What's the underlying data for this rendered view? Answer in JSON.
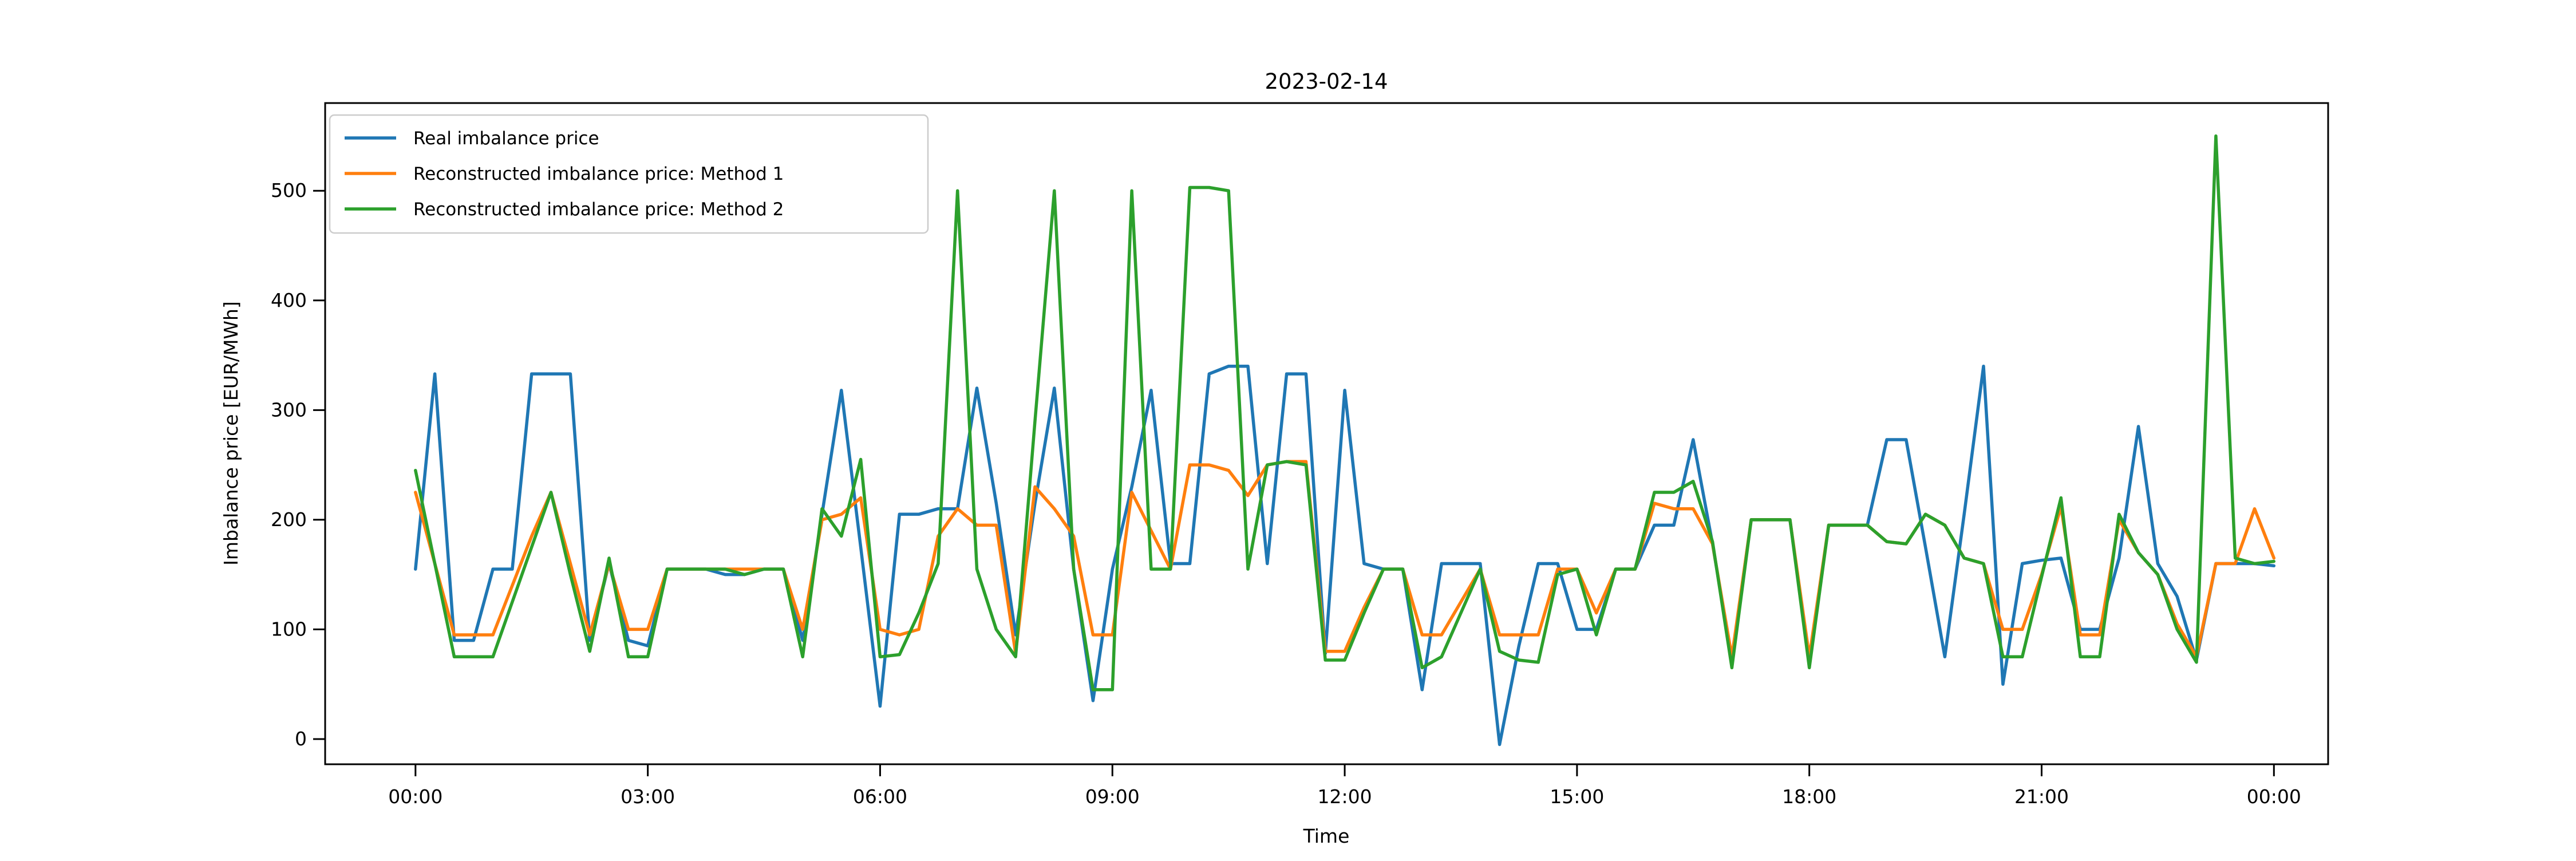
{
  "title": "2023-02-14",
  "chart_data": {
    "type": "line",
    "title": "2023-02-14",
    "xlabel": "Time",
    "ylabel": "Imbalance price [EUR/MWh]",
    "grid": false,
    "background": "#ffffff",
    "ylim": [
      -23,
      580
    ],
    "xlim_minutes": [
      -70,
      1482
    ],
    "y_ticks": [
      0,
      100,
      200,
      300,
      400,
      500
    ],
    "x_tick_minutes": [
      0,
      180,
      360,
      540,
      720,
      900,
      1080,
      1260,
      1440
    ],
    "x_tick_labels": [
      "00:00",
      "03:00",
      "06:00",
      "09:00",
      "12:00",
      "15:00",
      "18:00",
      "21:00",
      "00:00"
    ],
    "step_minutes": 15,
    "legend": {
      "position": "upper left",
      "entries": [
        {
          "label": "Real imbalance price",
          "color": "#1f77b4"
        },
        {
          "label": "Reconstructed imbalance price: Method 1",
          "color": "#ff7f0e"
        },
        {
          "label": "Reconstructed imbalance price: Method 2",
          "color": "#2ca02c"
        }
      ]
    },
    "series": [
      {
        "name": "Real imbalance price",
        "color": "#1f77b4",
        "values": [
          155,
          333,
          90,
          90,
          155,
          155,
          333,
          333,
          333,
          90,
          160,
          90,
          85,
          155,
          155,
          155,
          150,
          150,
          155,
          155,
          90,
          205,
          318,
          175,
          30,
          205,
          205,
          210,
          210,
          320,
          215,
          95,
          215,
          320,
          155,
          35,
          155,
          230,
          318,
          160,
          160,
          333,
          340,
          340,
          160,
          333,
          333,
          78,
          318,
          160,
          155,
          155,
          45,
          160,
          160,
          160,
          -5,
          85,
          160,
          160,
          100,
          100,
          155,
          155,
          195,
          195,
          273,
          178,
          72,
          200,
          200,
          200,
          70,
          195,
          195,
          195,
          273,
          273,
          175,
          75,
          205,
          340,
          50,
          160,
          163,
          165,
          100,
          100,
          165,
          285,
          160,
          130,
          72,
          160,
          160,
          160,
          158
        ]
      },
      {
        "name": "Reconstructed imbalance price: Method 1",
        "color": "#ff7f0e",
        "values": [
          225,
          160,
          95,
          95,
          95,
          140,
          185,
          225,
          160,
          95,
          160,
          100,
          100,
          155,
          155,
          155,
          155,
          155,
          155,
          155,
          100,
          200,
          205,
          220,
          100,
          95,
          100,
          185,
          210,
          195,
          195,
          78,
          230,
          210,
          185,
          95,
          95,
          225,
          190,
          155,
          250,
          250,
          245,
          222,
          250,
          253,
          253,
          80,
          80,
          120,
          155,
          155,
          95,
          95,
          125,
          155,
          95,
          95,
          95,
          155,
          155,
          115,
          155,
          155,
          215,
          210,
          210,
          178,
          75,
          200,
          200,
          200,
          75,
          195,
          195,
          195,
          180,
          178,
          205,
          195,
          165,
          160,
          100,
          100,
          150,
          212,
          95,
          95,
          200,
          170,
          150,
          105,
          75,
          160,
          160,
          210,
          165
        ]
      },
      {
        "name": "Reconstructed imbalance price: Method 2",
        "color": "#2ca02c",
        "values": [
          245,
          160,
          75,
          75,
          75,
          125,
          175,
          225,
          150,
          80,
          165,
          75,
          75,
          155,
          155,
          155,
          155,
          150,
          155,
          155,
          75,
          210,
          185,
          255,
          75,
          77,
          115,
          160,
          500,
          155,
          100,
          75,
          290,
          500,
          155,
          45,
          45,
          500,
          155,
          155,
          503,
          503,
          500,
          155,
          250,
          253,
          250,
          72,
          72,
          115,
          155,
          155,
          65,
          75,
          115,
          155,
          80,
          72,
          70,
          150,
          155,
          95,
          155,
          155,
          225,
          225,
          235,
          180,
          65,
          200,
          200,
          200,
          65,
          195,
          195,
          195,
          180,
          178,
          205,
          195,
          165,
          160,
          75,
          75,
          148,
          220,
          75,
          75,
          205,
          170,
          150,
          100,
          70,
          550,
          165,
          160,
          162
        ]
      }
    ]
  }
}
